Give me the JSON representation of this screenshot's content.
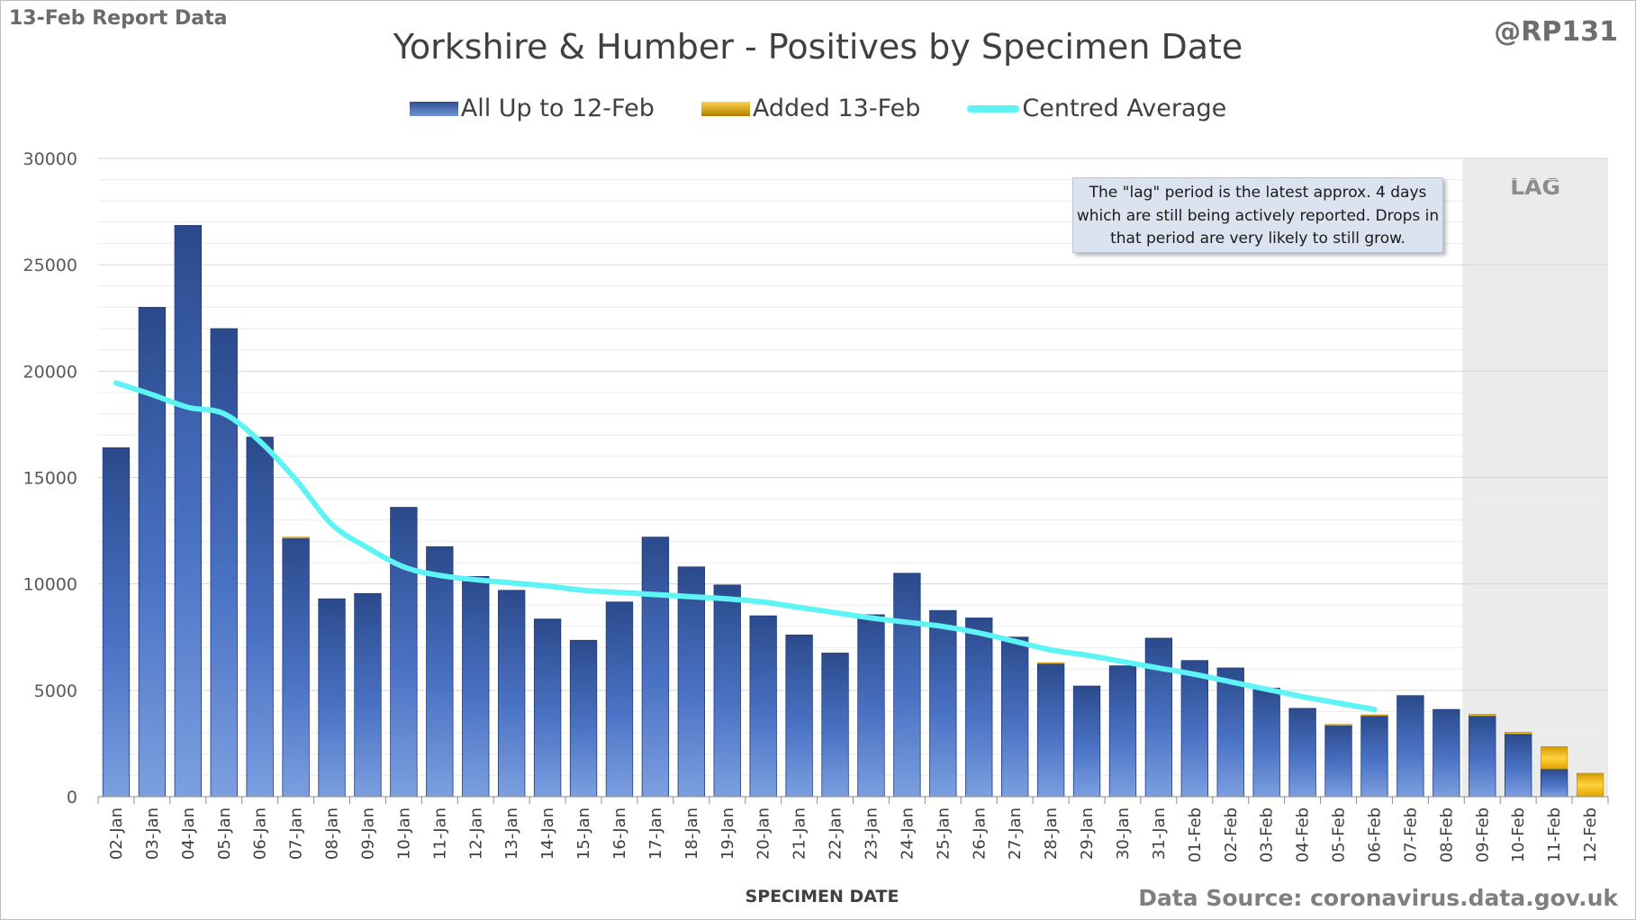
{
  "header": {
    "report_label": "13-Feb Report Data",
    "handle": "@RP131",
    "source": "Data Source: coronavirus.data.gov.uk"
  },
  "chart_data": {
    "type": "bar",
    "title": "Yorkshire & Humber - Positives by Specimen Date",
    "xlabel": "SPECIMEN DATE",
    "ylabel": "",
    "ylim": [
      0,
      30000
    ],
    "yticks": [
      "0",
      "5000",
      "10000",
      "15000",
      "20000",
      "25000",
      "30000"
    ],
    "grid": true,
    "stacked": true,
    "legend_position": "top",
    "categories": [
      "02-Jan",
      "03-Jan",
      "04-Jan",
      "05-Jan",
      "06-Jan",
      "07-Jan",
      "08-Jan",
      "09-Jan",
      "10-Jan",
      "11-Jan",
      "12-Jan",
      "13-Jan",
      "14-Jan",
      "15-Jan",
      "16-Jan",
      "17-Jan",
      "18-Jan",
      "19-Jan",
      "20-Jan",
      "21-Jan",
      "22-Jan",
      "23-Jan",
      "24-Jan",
      "25-Jan",
      "26-Jan",
      "27-Jan",
      "28-Jan",
      "29-Jan",
      "30-Jan",
      "31-Jan",
      "01-Feb",
      "02-Feb",
      "03-Feb",
      "04-Feb",
      "05-Feb",
      "06-Feb",
      "07-Feb",
      "08-Feb",
      "09-Feb",
      "10-Feb",
      "11-Feb",
      "12-Feb"
    ],
    "series": [
      {
        "name": "All Up to 12-Feb",
        "kind": "bar",
        "color": "#3a5ea8",
        "values": [
          16400,
          23000,
          26850,
          22000,
          16900,
          12150,
          9300,
          9550,
          13600,
          11750,
          10350,
          9700,
          8350,
          7350,
          9150,
          12200,
          10800,
          9950,
          8500,
          7600,
          6750,
          8550,
          10500,
          8750,
          8400,
          7500,
          6250,
          5200,
          6150,
          7450,
          6400,
          6050,
          5100,
          4150,
          3350,
          3800,
          4750,
          4100,
          3800,
          2950,
          1300,
          0
        ]
      },
      {
        "name": "Added 13-Feb",
        "kind": "bar",
        "color": "#f2b824",
        "values": [
          0,
          0,
          0,
          0,
          0,
          50,
          0,
          0,
          0,
          0,
          0,
          0,
          0,
          0,
          0,
          0,
          0,
          0,
          0,
          0,
          0,
          0,
          0,
          0,
          0,
          0,
          50,
          0,
          0,
          0,
          0,
          0,
          0,
          0,
          50,
          50,
          0,
          0,
          80,
          80,
          1050,
          1100
        ]
      },
      {
        "name": "Centred Average",
        "kind": "line",
        "color": "#5ef3f5",
        "values": [
          19450,
          18900,
          18300,
          18000,
          16700,
          14900,
          12800,
          11700,
          10800,
          10400,
          10200,
          10050,
          9900,
          9700,
          9600,
          9500,
          9400,
          9300,
          9150,
          8900,
          8650,
          8400,
          8200,
          8000,
          7700,
          7300,
          6900,
          6650,
          6350,
          6050,
          5750,
          5400,
          5050,
          4700,
          4400,
          4100,
          null,
          null,
          null,
          null,
          null,
          null
        ]
      }
    ],
    "lag_region": {
      "label": "LAG",
      "from": "09-Feb",
      "to": "12-Feb"
    },
    "annotation": "The \"lag\" period is the latest approx. 4 days which are still being actively reported. Drops in that period are very likely to still grow."
  }
}
